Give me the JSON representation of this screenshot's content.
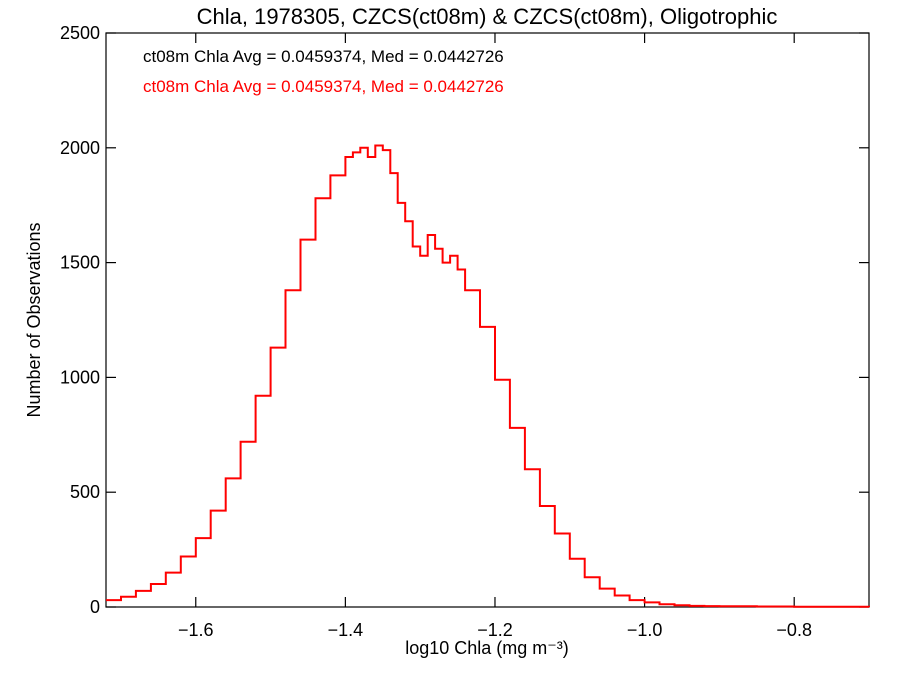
{
  "chart_data": {
    "type": "line",
    "title": "Chla, 1978305, CZCS(ct08m) & CZCS(ct08m), Oligotrophic",
    "xlabel": "log10 Chla (mg m⁻³)",
    "ylabel": "Number of Observations",
    "xlim": [
      -1.72,
      -0.7
    ],
    "ylim": [
      0,
      2500
    ],
    "xticks": [
      -1.6,
      -1.4,
      -1.2,
      -1.0,
      -0.8
    ],
    "xtick_labels": [
      "−1.6",
      "−1.4",
      "−1.2",
      "−1.0",
      "−0.8"
    ],
    "yticks": [
      0,
      500,
      1000,
      1500,
      2000,
      2500
    ],
    "ytick_labels": [
      "0",
      "500",
      "1000",
      "1500",
      "2000",
      "2500"
    ],
    "grid": false,
    "legend_position": "top-left",
    "legend": [
      {
        "text": "ct08m Chla Avg = 0.0459374, Med = 0.0442726",
        "color": "#000000"
      },
      {
        "text": "ct08m Chla Avg = 0.0459374, Med = 0.0442726",
        "color": "#ff0000"
      }
    ],
    "series": [
      {
        "color": "#ff0000",
        "step": true,
        "x": [
          -1.72,
          -1.7,
          -1.68,
          -1.66,
          -1.64,
          -1.62,
          -1.6,
          -1.58,
          -1.56,
          -1.54,
          -1.52,
          -1.5,
          -1.48,
          -1.46,
          -1.44,
          -1.42,
          -1.4,
          -1.39,
          -1.38,
          -1.37,
          -1.36,
          -1.35,
          -1.34,
          -1.33,
          -1.32,
          -1.31,
          -1.3,
          -1.29,
          -1.28,
          -1.27,
          -1.26,
          -1.25,
          -1.24,
          -1.22,
          -1.2,
          -1.18,
          -1.16,
          -1.14,
          -1.12,
          -1.1,
          -1.08,
          -1.06,
          -1.04,
          -1.02,
          -1.0,
          -0.98,
          -0.96,
          -0.94,
          -0.92,
          -0.9,
          -0.85,
          -0.8,
          -0.75,
          -0.7
        ],
        "values": [
          30,
          45,
          70,
          100,
          150,
          220,
          300,
          420,
          560,
          720,
          920,
          1130,
          1380,
          1600,
          1780,
          1880,
          1960,
          1980,
          2000,
          1960,
          2010,
          1990,
          1890,
          1760,
          1680,
          1570,
          1530,
          1620,
          1560,
          1500,
          1530,
          1470,
          1380,
          1220,
          990,
          780,
          600,
          440,
          320,
          210,
          130,
          80,
          50,
          30,
          20,
          12,
          8,
          5,
          4,
          3,
          2,
          1,
          1,
          0
        ]
      }
    ]
  }
}
